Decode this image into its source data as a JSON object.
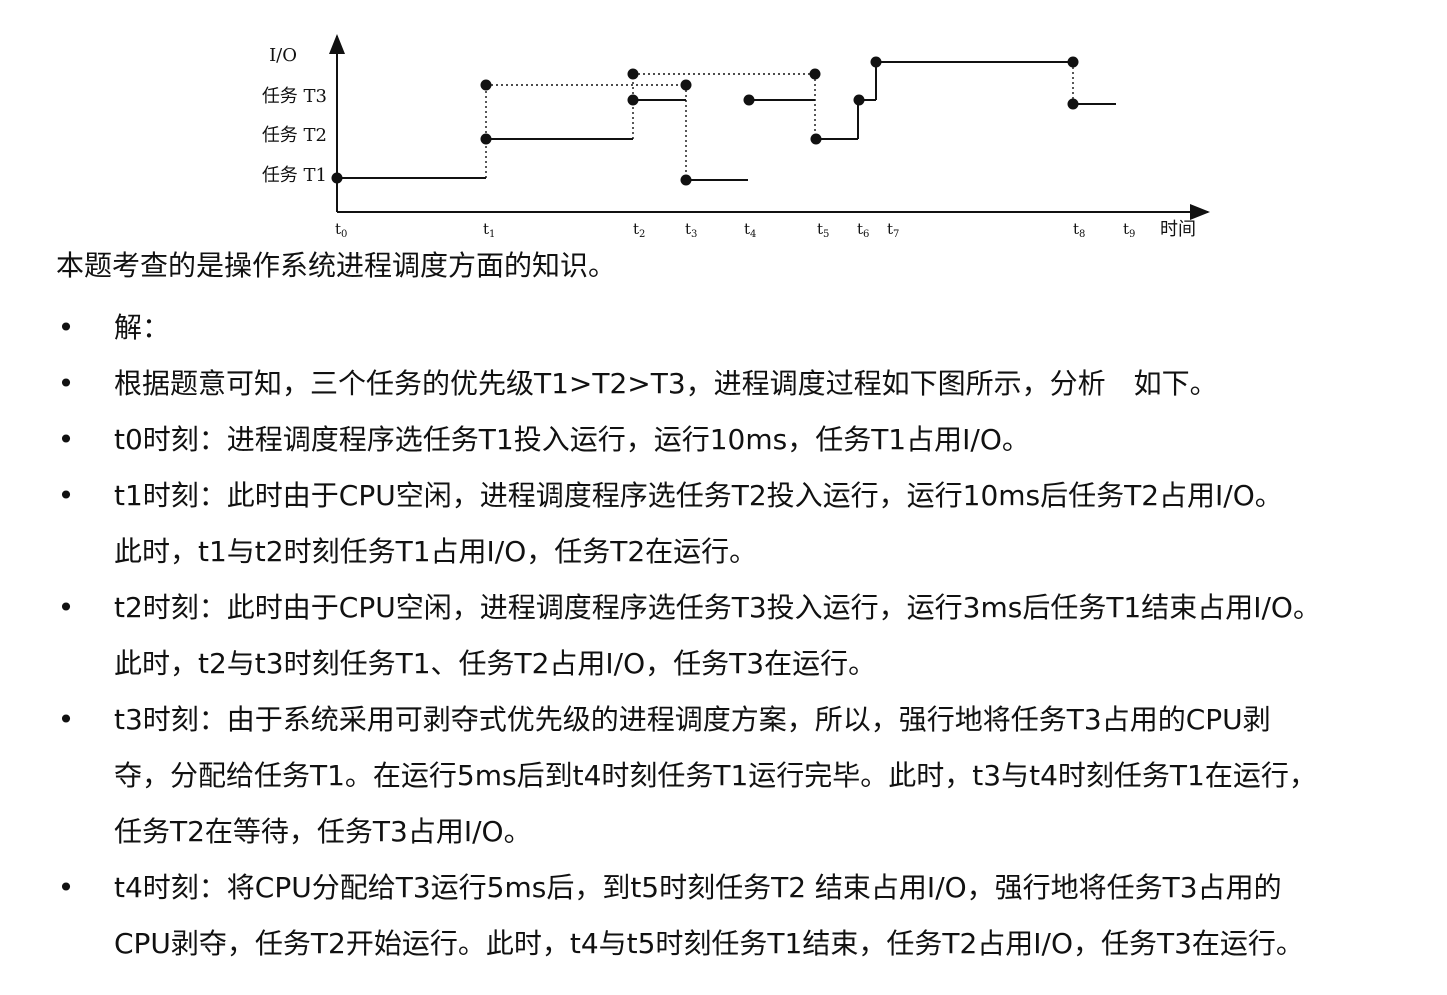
{
  "diagram": {
    "y_labels": [
      "I/O",
      "任务 T3",
      "任务 T2",
      "任务 T1"
    ],
    "x_labels": [
      "t0",
      "t1",
      "t2",
      "t3",
      "t4",
      "t5",
      "t6",
      "t7",
      "t8",
      "t9"
    ],
    "x_axis_unit": "时间"
  },
  "intro": "本题考查的是操作系统进程调度方面的知识。",
  "bullets": [
    "解：",
    "根据题意可知，三个任务的优先级T1>T2>T3，进程调度过程如下图所示，分析　如下。",
    "t0时刻：进程调度程序选任务T1投入运行，运行10ms，任务T1占用I/O。",
    "t1时刻：此时由于CPU空闲，进程调度程序选任务T2投入运行，运行10ms后任务T2占用I/O。\n此时，t1与t2时刻任务T1占用I/O，任务T2在运行。",
    "t2时刻：此时由于CPU空闲，进程调度程序选任务T3投入运行，运行3ms后任务T1结束占用I/O。\n此时，t2与t3时刻任务T1、任务T2占用I/O，任务T3在运行。",
    "t3时刻：由于系统采用可剥夺式优先级的进程调度方案，所以，强行地将任务T3占用的CPU剥\n夺，分配给任务T1。在运行5ms后到t4时刻任务T1运行完毕。此时，t3与t4时刻任务T1在运行，\n任务T2在等待，任务T3占用I/O。",
    "t4时刻：将CPU分配给T3运行5ms后，到t5时刻任务T2 结束占用I/O，强行地将任务T3占用的\nCPU剥夺，任务T2开始运行。此时，t4与t5时刻任务T1结束，任务T2占用I/O，任务T3在运行。"
  ]
}
